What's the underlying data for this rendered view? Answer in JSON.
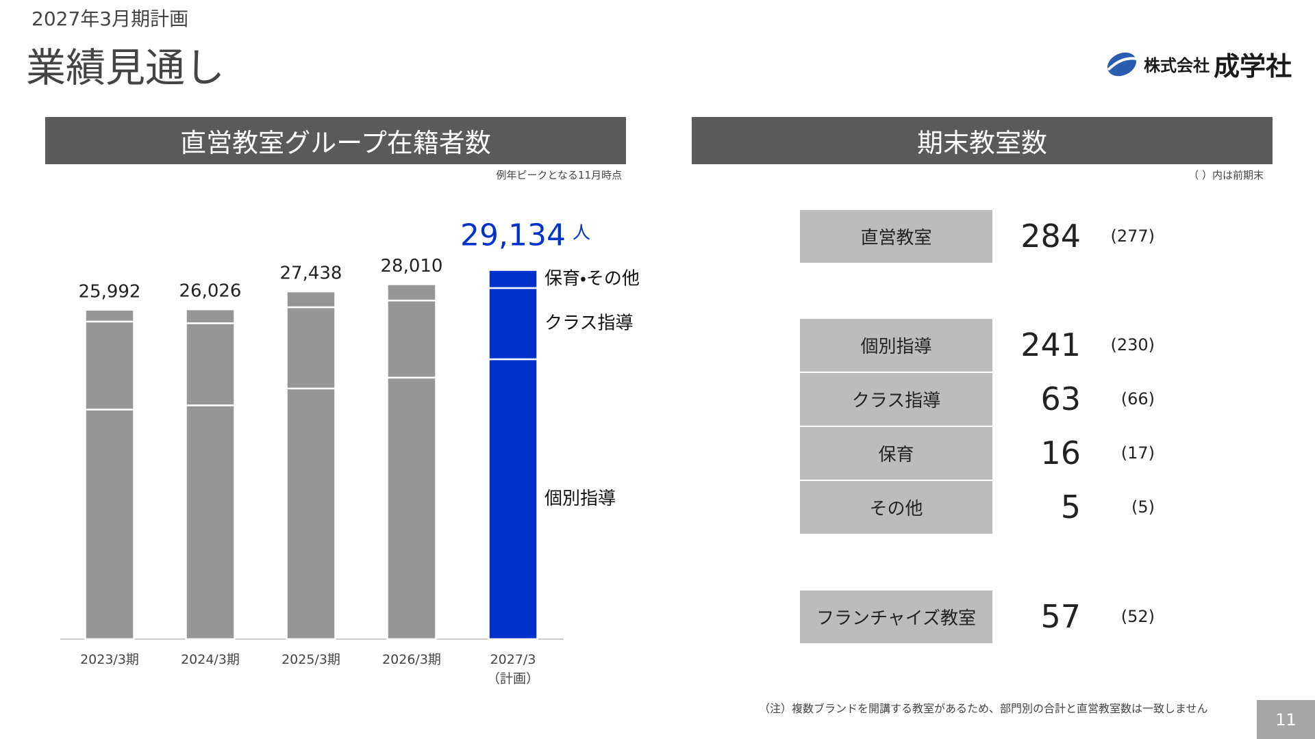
{
  "header": {
    "subtitle": "2027年3月期計画",
    "title": "業績見通し",
    "logo_prefix": "株式会社",
    "logo_name": "成学社"
  },
  "chart_data": {
    "type": "bar",
    "stacked": true,
    "title": "直営教室グループ在籍者数",
    "note": "例年ピークとなる11月時点",
    "unit": "人",
    "categories": [
      "2023/3期",
      "2024/3期",
      "2025/3期",
      "2026/3期",
      "2027/3\n（計画）"
    ],
    "series": [
      {
        "name": "個別指導",
        "color": "#969696",
        "values": [
          18120,
          18450,
          19780,
          20640,
          22090
        ]
      },
      {
        "name": "クラス指導",
        "color": "#969696",
        "values": [
          6945,
          6480,
          6415,
          6085,
          5620
        ]
      },
      {
        "name": "保育・その他",
        "color": "#969696",
        "values": [
          927,
          1096,
          1243,
          1285,
          1424
        ]
      }
    ],
    "totals": [
      25992,
      26026,
      27438,
      28010,
      29134
    ],
    "total_labels": [
      "25,992",
      "26,026",
      "27,438",
      "28,010",
      "29,134"
    ],
    "highlight": {
      "index": 4,
      "color": "#0033cc"
    },
    "ylim": [
      0,
      33000
    ]
  },
  "classrooms": {
    "title": "期末教室数",
    "note": "（ ）内は前期末",
    "rows": [
      {
        "label": "直営教室",
        "value": "284",
        "previous": "(277)"
      },
      {
        "label": "個別指導",
        "value": "241",
        "previous": "(230)"
      },
      {
        "label": "クラス指導",
        "value": "63",
        "previous": "(66)"
      },
      {
        "label": "保育",
        "value": "16",
        "previous": "(17)"
      },
      {
        "label": "その他",
        "value": "5",
        "previous": "(5)"
      },
      {
        "label": "フランチャイズ教室",
        "value": "57",
        "previous": "(52)"
      }
    ],
    "footnote": "（注）複数ブランドを開講する教室があるため、部門別の合計と直営教室数は一致しません"
  },
  "page_number": "11"
}
